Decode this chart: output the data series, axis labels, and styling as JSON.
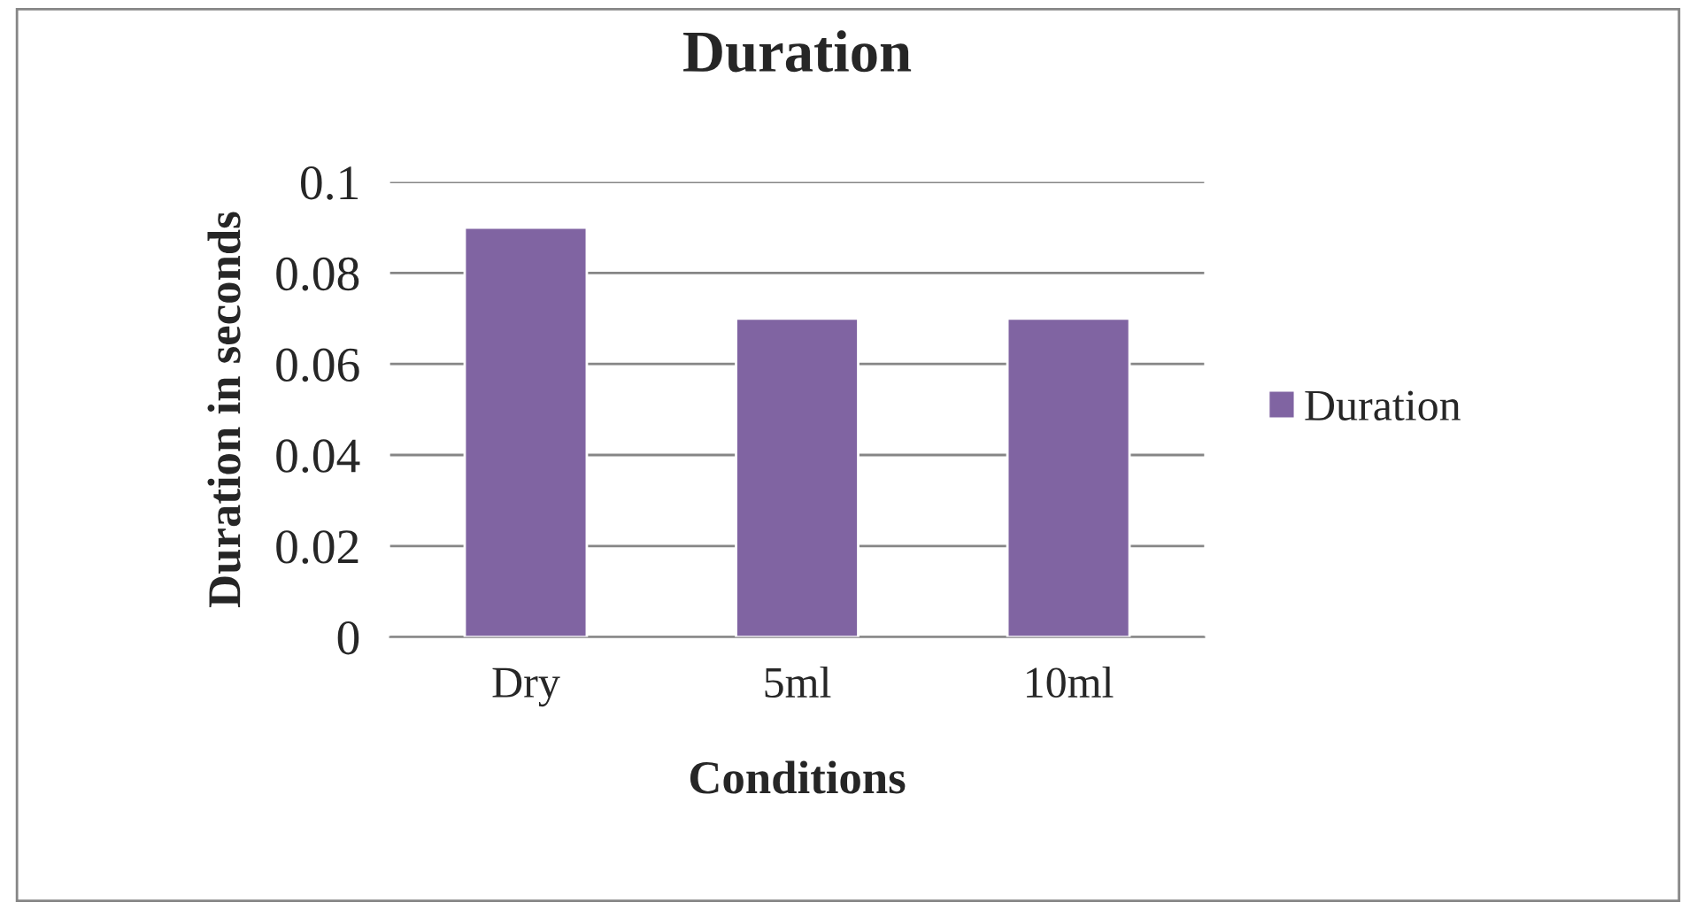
{
  "chart_data": {
    "type": "bar",
    "title": "Duration",
    "xlabel": "Conditions",
    "ylabel": "Duration in seconds",
    "categories": [
      "Dry",
      "5ml",
      "10ml"
    ],
    "series": [
      {
        "name": "Duration",
        "color": "#8064a2",
        "values": [
          0.09,
          0.07,
          0.07
        ]
      }
    ],
    "ylim": [
      0,
      0.1
    ],
    "yticks": [
      {
        "value": 0,
        "label": "0"
      },
      0.02,
      0.04,
      0.06,
      0.08,
      0.1
    ],
    "grid": "y",
    "legend": "right"
  }
}
